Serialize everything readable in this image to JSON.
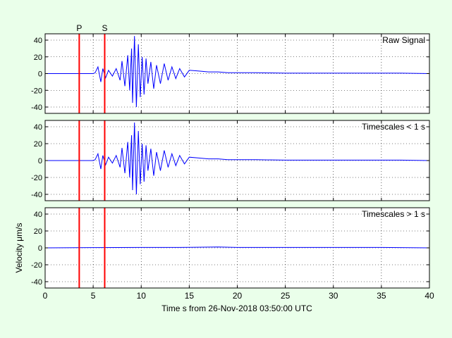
{
  "chart_data": {
    "type": "line",
    "xlabel": "Time s from 26-Nov-2018 03:50:00 UTC",
    "ylabel": "Velocity μm/s",
    "xlim": [
      0,
      40
    ],
    "ylim": [
      -45,
      45
    ],
    "x_ticks": [
      "0",
      "5",
      "10",
      "15",
      "20",
      "25",
      "30",
      "35",
      "40"
    ],
    "y_ticks": [
      "40",
      "20",
      "0",
      "-20",
      "-40"
    ],
    "grid": true,
    "colors": {
      "trace": "#0000ff",
      "phase_marker": "#ff0000",
      "background": "#eaffea",
      "axes_bg": "#ffffff"
    },
    "phase_markers": [
      {
        "label": "P",
        "x": 3.55
      },
      {
        "label": "S",
        "x": 6.2
      }
    ],
    "panels": [
      {
        "name": "Raw Signal",
        "series": [
          {
            "x": [
              0,
              2,
              3.5,
              4.5,
              5.0,
              5.2,
              5.5,
              5.8,
              6.0,
              6.3,
              6.6,
              7.0,
              7.4,
              7.8,
              8.0,
              8.3,
              8.6,
              8.8,
              9.0,
              9.1,
              9.3,
              9.5,
              9.7,
              9.9,
              10.1,
              10.3,
              10.5,
              10.7,
              11.0,
              11.3,
              11.6,
              12.0,
              12.4,
              12.8,
              13.2,
              13.6,
              14.0,
              14.5,
              15.0,
              16,
              17,
              18,
              19,
              20,
              22,
              25,
              28,
              31,
              34,
              37,
              40
            ],
            "y": [
              0,
              0,
              0,
              0,
              0,
              1,
              8,
              -10,
              6,
              -5,
              4,
              -3,
              6,
              -8,
              15,
              -15,
              22,
              -20,
              30,
              -35,
              45,
              -40,
              35,
              -28,
              20,
              -25,
              18,
              -12,
              14,
              -18,
              10,
              -12,
              12,
              -8,
              8,
              -6,
              6,
              -4,
              4,
              3,
              2,
              2,
              1,
              1,
              1,
              0.5,
              0.5,
              0.5,
              0.5,
              0.5,
              0
            ]
          }
        ]
      },
      {
        "name": "Timescales < 1 s",
        "series": [
          {
            "x": [
              0,
              2,
              3.5,
              4.5,
              5.0,
              5.2,
              5.5,
              5.8,
              6.0,
              6.3,
              6.6,
              7.0,
              7.4,
              7.8,
              8.0,
              8.3,
              8.6,
              8.8,
              9.0,
              9.1,
              9.3,
              9.5,
              9.7,
              9.9,
              10.1,
              10.3,
              10.5,
              10.7,
              11.0,
              11.3,
              11.6,
              12.0,
              12.4,
              12.8,
              13.2,
              13.6,
              14.0,
              14.5,
              15.0,
              16,
              17,
              18,
              19,
              20,
              22,
              25,
              28,
              31,
              34,
              37,
              40
            ],
            "y": [
              0,
              0,
              0,
              0,
              0,
              1,
              8,
              -10,
              6,
              -5,
              4,
              -3,
              6,
              -8,
              15,
              -15,
              22,
              -20,
              30,
              -35,
              45,
              -40,
              35,
              -28,
              20,
              -25,
              18,
              -12,
              14,
              -18,
              10,
              -12,
              12,
              -8,
              8,
              -6,
              6,
              -4,
              4,
              3,
              2,
              2,
              1,
              1,
              1,
              0.5,
              0.5,
              0.5,
              0.5,
              0.5,
              0
            ]
          }
        ]
      },
      {
        "name": "Timescales > 1 s",
        "series": [
          {
            "x": [
              0,
              5,
              10,
              15,
              18,
              20,
              25,
              30,
              35,
              40
            ],
            "y": [
              0,
              0.3,
              0.5,
              0.6,
              1,
              0.5,
              0.5,
              0.5,
              0.5,
              0
            ]
          }
        ]
      }
    ]
  }
}
